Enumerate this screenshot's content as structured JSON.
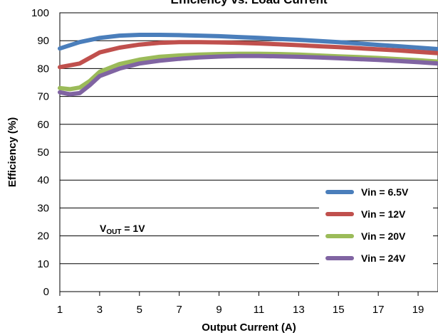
{
  "chart_data": {
    "type": "line",
    "title": "Efficiency vs. Load Current",
    "xlabel": "Output Current (A)",
    "ylabel": "Efficiency (%)",
    "xlim": [
      1,
      20
    ],
    "ylim": [
      0,
      100
    ],
    "x_ticks": [
      1,
      3,
      5,
      7,
      9,
      11,
      13,
      15,
      17,
      19
    ],
    "y_ticks": [
      0,
      10,
      20,
      30,
      40,
      50,
      60,
      70,
      80,
      90,
      100
    ],
    "grid": true,
    "legend_position": "bottom-right",
    "annotation": {
      "main": "V",
      "sub": "OUT",
      "suffix": " = 1V"
    },
    "series": [
      {
        "name": "Vin = 6.5V",
        "color": "#4a7ebb",
        "x": [
          1,
          2,
          3,
          4,
          5,
          6,
          7,
          8,
          9,
          10,
          11,
          12,
          13,
          14,
          15,
          16,
          17,
          18,
          19,
          20
        ],
        "values": [
          87.2,
          89.5,
          91.0,
          91.8,
          92.1,
          92.1,
          92.0,
          91.8,
          91.6,
          91.3,
          91.0,
          90.6,
          90.3,
          89.9,
          89.5,
          89.0,
          88.5,
          88.0,
          87.5,
          87.0
        ]
      },
      {
        "name": "Vin = 12V",
        "color": "#c0504d",
        "x": [
          1,
          2,
          3,
          4,
          5,
          6,
          7,
          8,
          9,
          10,
          11,
          12,
          13,
          14,
          15,
          16,
          17,
          18,
          19,
          20
        ],
        "values": [
          80.5,
          81.8,
          85.8,
          87.5,
          88.6,
          89.2,
          89.5,
          89.5,
          89.4,
          89.2,
          89.0,
          88.7,
          88.4,
          88.0,
          87.7,
          87.3,
          86.9,
          86.5,
          86.0,
          85.5
        ]
      },
      {
        "name": "Vin = 20V",
        "color": "#9bbb59",
        "x": [
          1,
          1.5,
          2,
          2.5,
          3,
          4,
          5,
          6,
          7,
          8,
          9,
          10,
          11,
          12,
          13,
          14,
          15,
          16,
          17,
          18,
          19,
          20
        ],
        "values": [
          73.0,
          72.6,
          73.2,
          75.5,
          78.8,
          81.6,
          83.2,
          84.2,
          84.7,
          85.0,
          85.2,
          85.3,
          85.3,
          85.2,
          85.0,
          84.7,
          84.4,
          84.1,
          83.8,
          83.4,
          83.0,
          82.5
        ]
      },
      {
        "name": "Vin = 24V",
        "color": "#8064a2",
        "x": [
          1,
          1.5,
          2,
          2.5,
          3,
          4,
          5,
          6,
          7,
          8,
          9,
          10,
          11,
          12,
          13,
          14,
          15,
          16,
          17,
          18,
          19,
          20
        ],
        "values": [
          71.5,
          70.8,
          71.2,
          74.0,
          77.3,
          80.0,
          81.8,
          82.8,
          83.5,
          84.0,
          84.3,
          84.5,
          84.5,
          84.4,
          84.2,
          84.0,
          83.7,
          83.4,
          83.1,
          82.7,
          82.3,
          81.8
        ]
      }
    ]
  }
}
